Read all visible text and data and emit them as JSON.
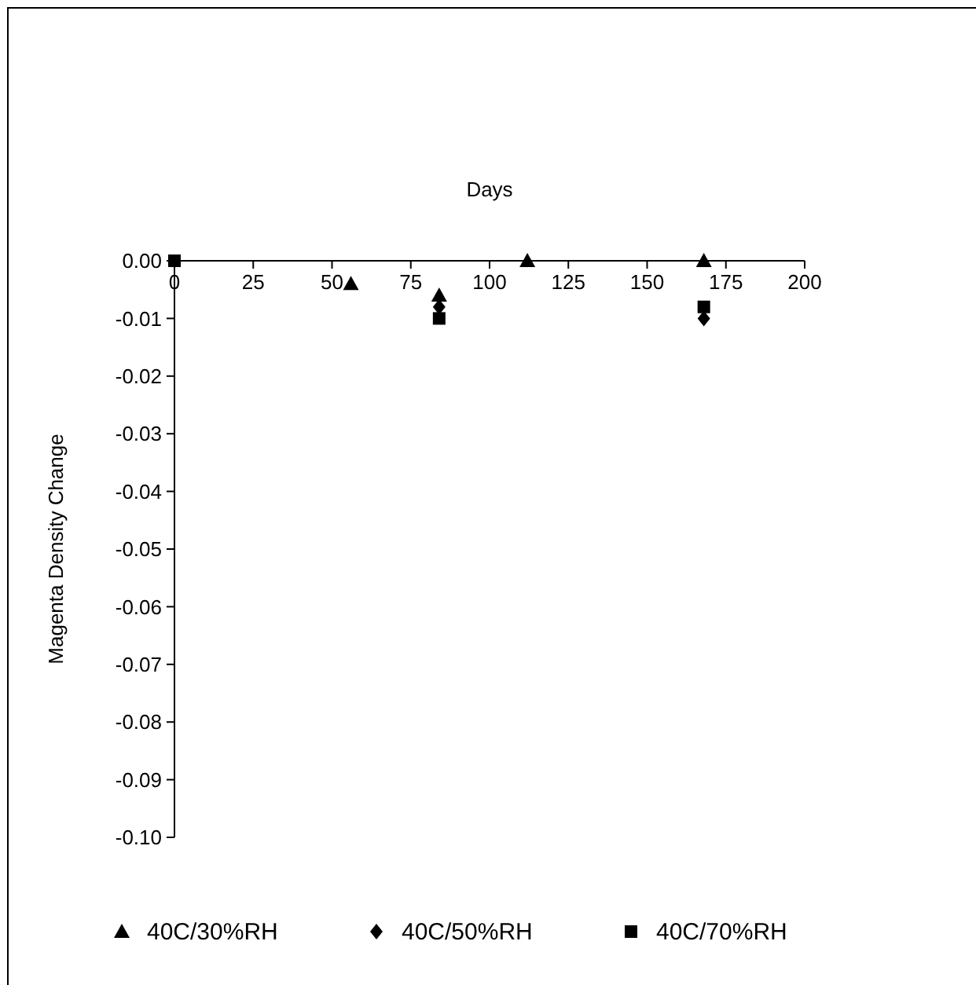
{
  "chart_data": {
    "type": "scatter",
    "xlabel": "Days",
    "ylabel": "Magenta Density Change",
    "xlim": [
      0,
      200
    ],
    "xticks": [
      0,
      25,
      50,
      75,
      100,
      125,
      150,
      175,
      200
    ],
    "ylim": [
      -0.1,
      0
    ],
    "yticks": [
      {
        "value": 0,
        "label": "0.00"
      },
      {
        "value": -0.01,
        "label": "-0.01"
      },
      {
        "value": -0.02,
        "label": "-0.02"
      },
      {
        "value": -0.03,
        "label": "-0.03"
      },
      {
        "value": -0.04,
        "label": "-0.04"
      },
      {
        "value": -0.05,
        "label": "-0.05"
      },
      {
        "value": -0.06,
        "label": "-0.06"
      },
      {
        "value": -0.07,
        "label": "-0.07"
      },
      {
        "value": -0.08,
        "label": "-0.08"
      },
      {
        "value": -0.09,
        "label": "-0.09"
      },
      {
        "value": -0.1,
        "label": "-0.10"
      }
    ],
    "grid": false,
    "legend": "bottom",
    "series": [
      {
        "name": "40C/30%RH",
        "color": "#000000",
        "marker": "triangle",
        "x": [
          56,
          84,
          112,
          168
        ],
        "values": [
          -0.004,
          -0.006,
          0,
          0
        ]
      },
      {
        "name": "40C/50%RH",
        "color": "#000000",
        "marker": "diamond",
        "x": [
          84,
          168
        ],
        "values": [
          -0.008,
          -0.01
        ]
      },
      {
        "name": "40C/70%RH",
        "color": "#000000",
        "marker": "square",
        "x": [
          0,
          84,
          168
        ],
        "values": [
          0,
          -0.01,
          -0.008
        ]
      }
    ]
  }
}
